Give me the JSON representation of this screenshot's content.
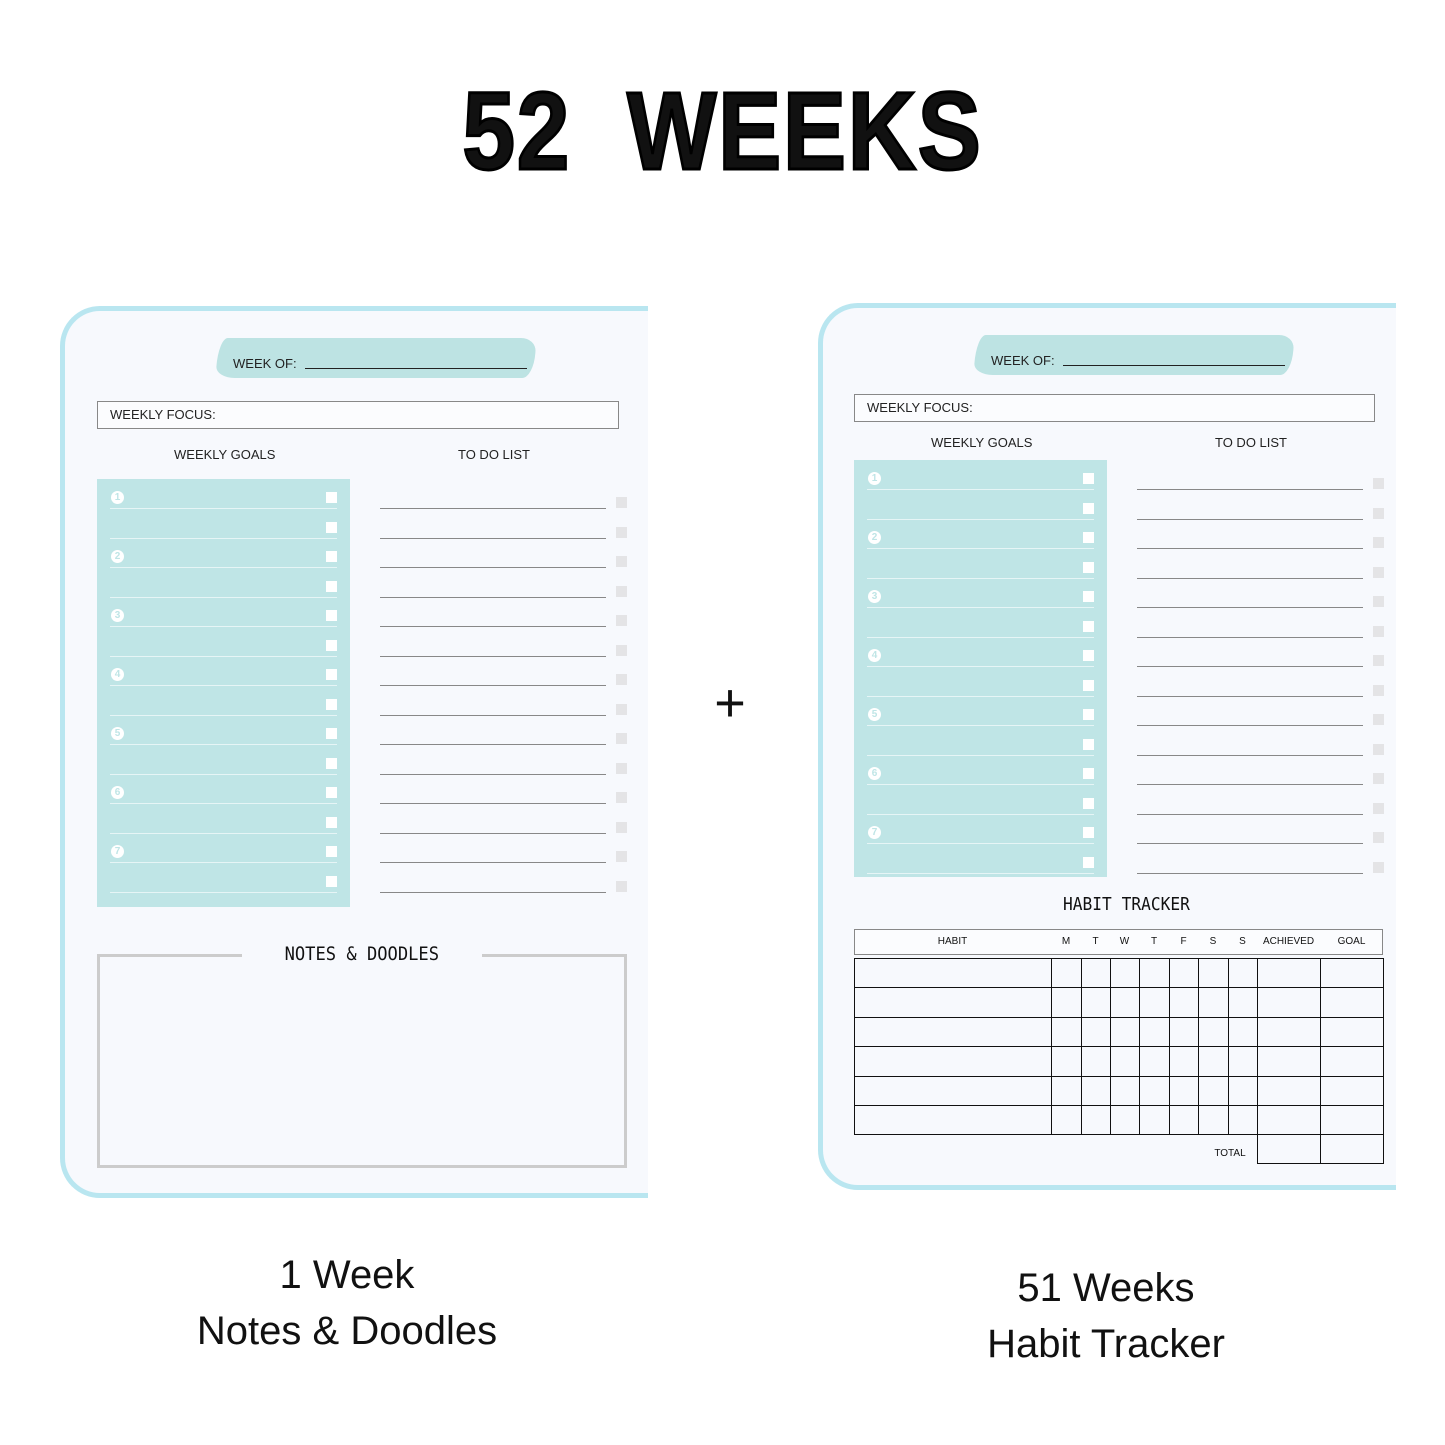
{
  "title": "52  WEEKS",
  "plus_sign": "+",
  "colors": {
    "accent_teal": "#bfe5e6",
    "page_border": "#b9e6f0"
  },
  "planner": {
    "week_of_label": "WEEK OF:",
    "weekly_focus_label": "WEEKLY FOCUS:",
    "weekly_goals_label": "WEEKLY GOALS",
    "todo_label": "TO DO LIST",
    "goal_numbers": [
      "1",
      "2",
      "3",
      "4",
      "5",
      "6",
      "7"
    ]
  },
  "left_page": {
    "notes_title": "NOTES & DOODLES"
  },
  "right_page": {
    "habit_title": "HABIT TRACKER",
    "columns": [
      "HABIT",
      "M",
      "T",
      "W",
      "T",
      "F",
      "S",
      "S",
      "ACHIEVED",
      "GOAL"
    ],
    "total_label": "TOTAL"
  },
  "captions": {
    "left": [
      "1 Week",
      "Notes & Doodles"
    ],
    "right": [
      "51 Weeks",
      "Habit Tracker"
    ]
  }
}
